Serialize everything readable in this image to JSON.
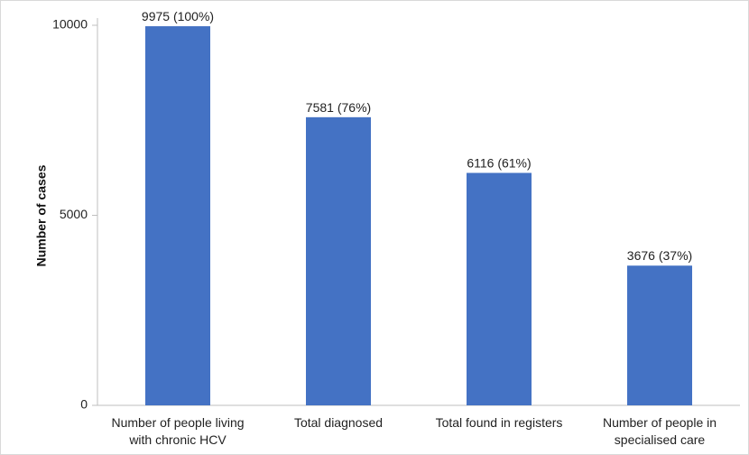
{
  "chart_data": {
    "type": "bar",
    "title": "",
    "xlabel": "",
    "ylabel": "Number of cases",
    "categories": [
      [
        "Number of people living",
        "with chronic HCV"
      ],
      [
        "Total diagnosed"
      ],
      [
        "Total found in registers"
      ],
      [
        "Number of people in",
        "specialised care"
      ]
    ],
    "values": [
      9975,
      7581,
      6116,
      3676
    ],
    "data_labels": [
      "9975 (100%)",
      "7581 (76%)",
      "6116 (61%)",
      "3676 (37%)"
    ],
    "ylim": [
      0,
      10000
    ],
    "yticks": [
      0,
      5000,
      10000
    ],
    "grid": false,
    "legend": "none",
    "bar_color": "#4472C4"
  }
}
